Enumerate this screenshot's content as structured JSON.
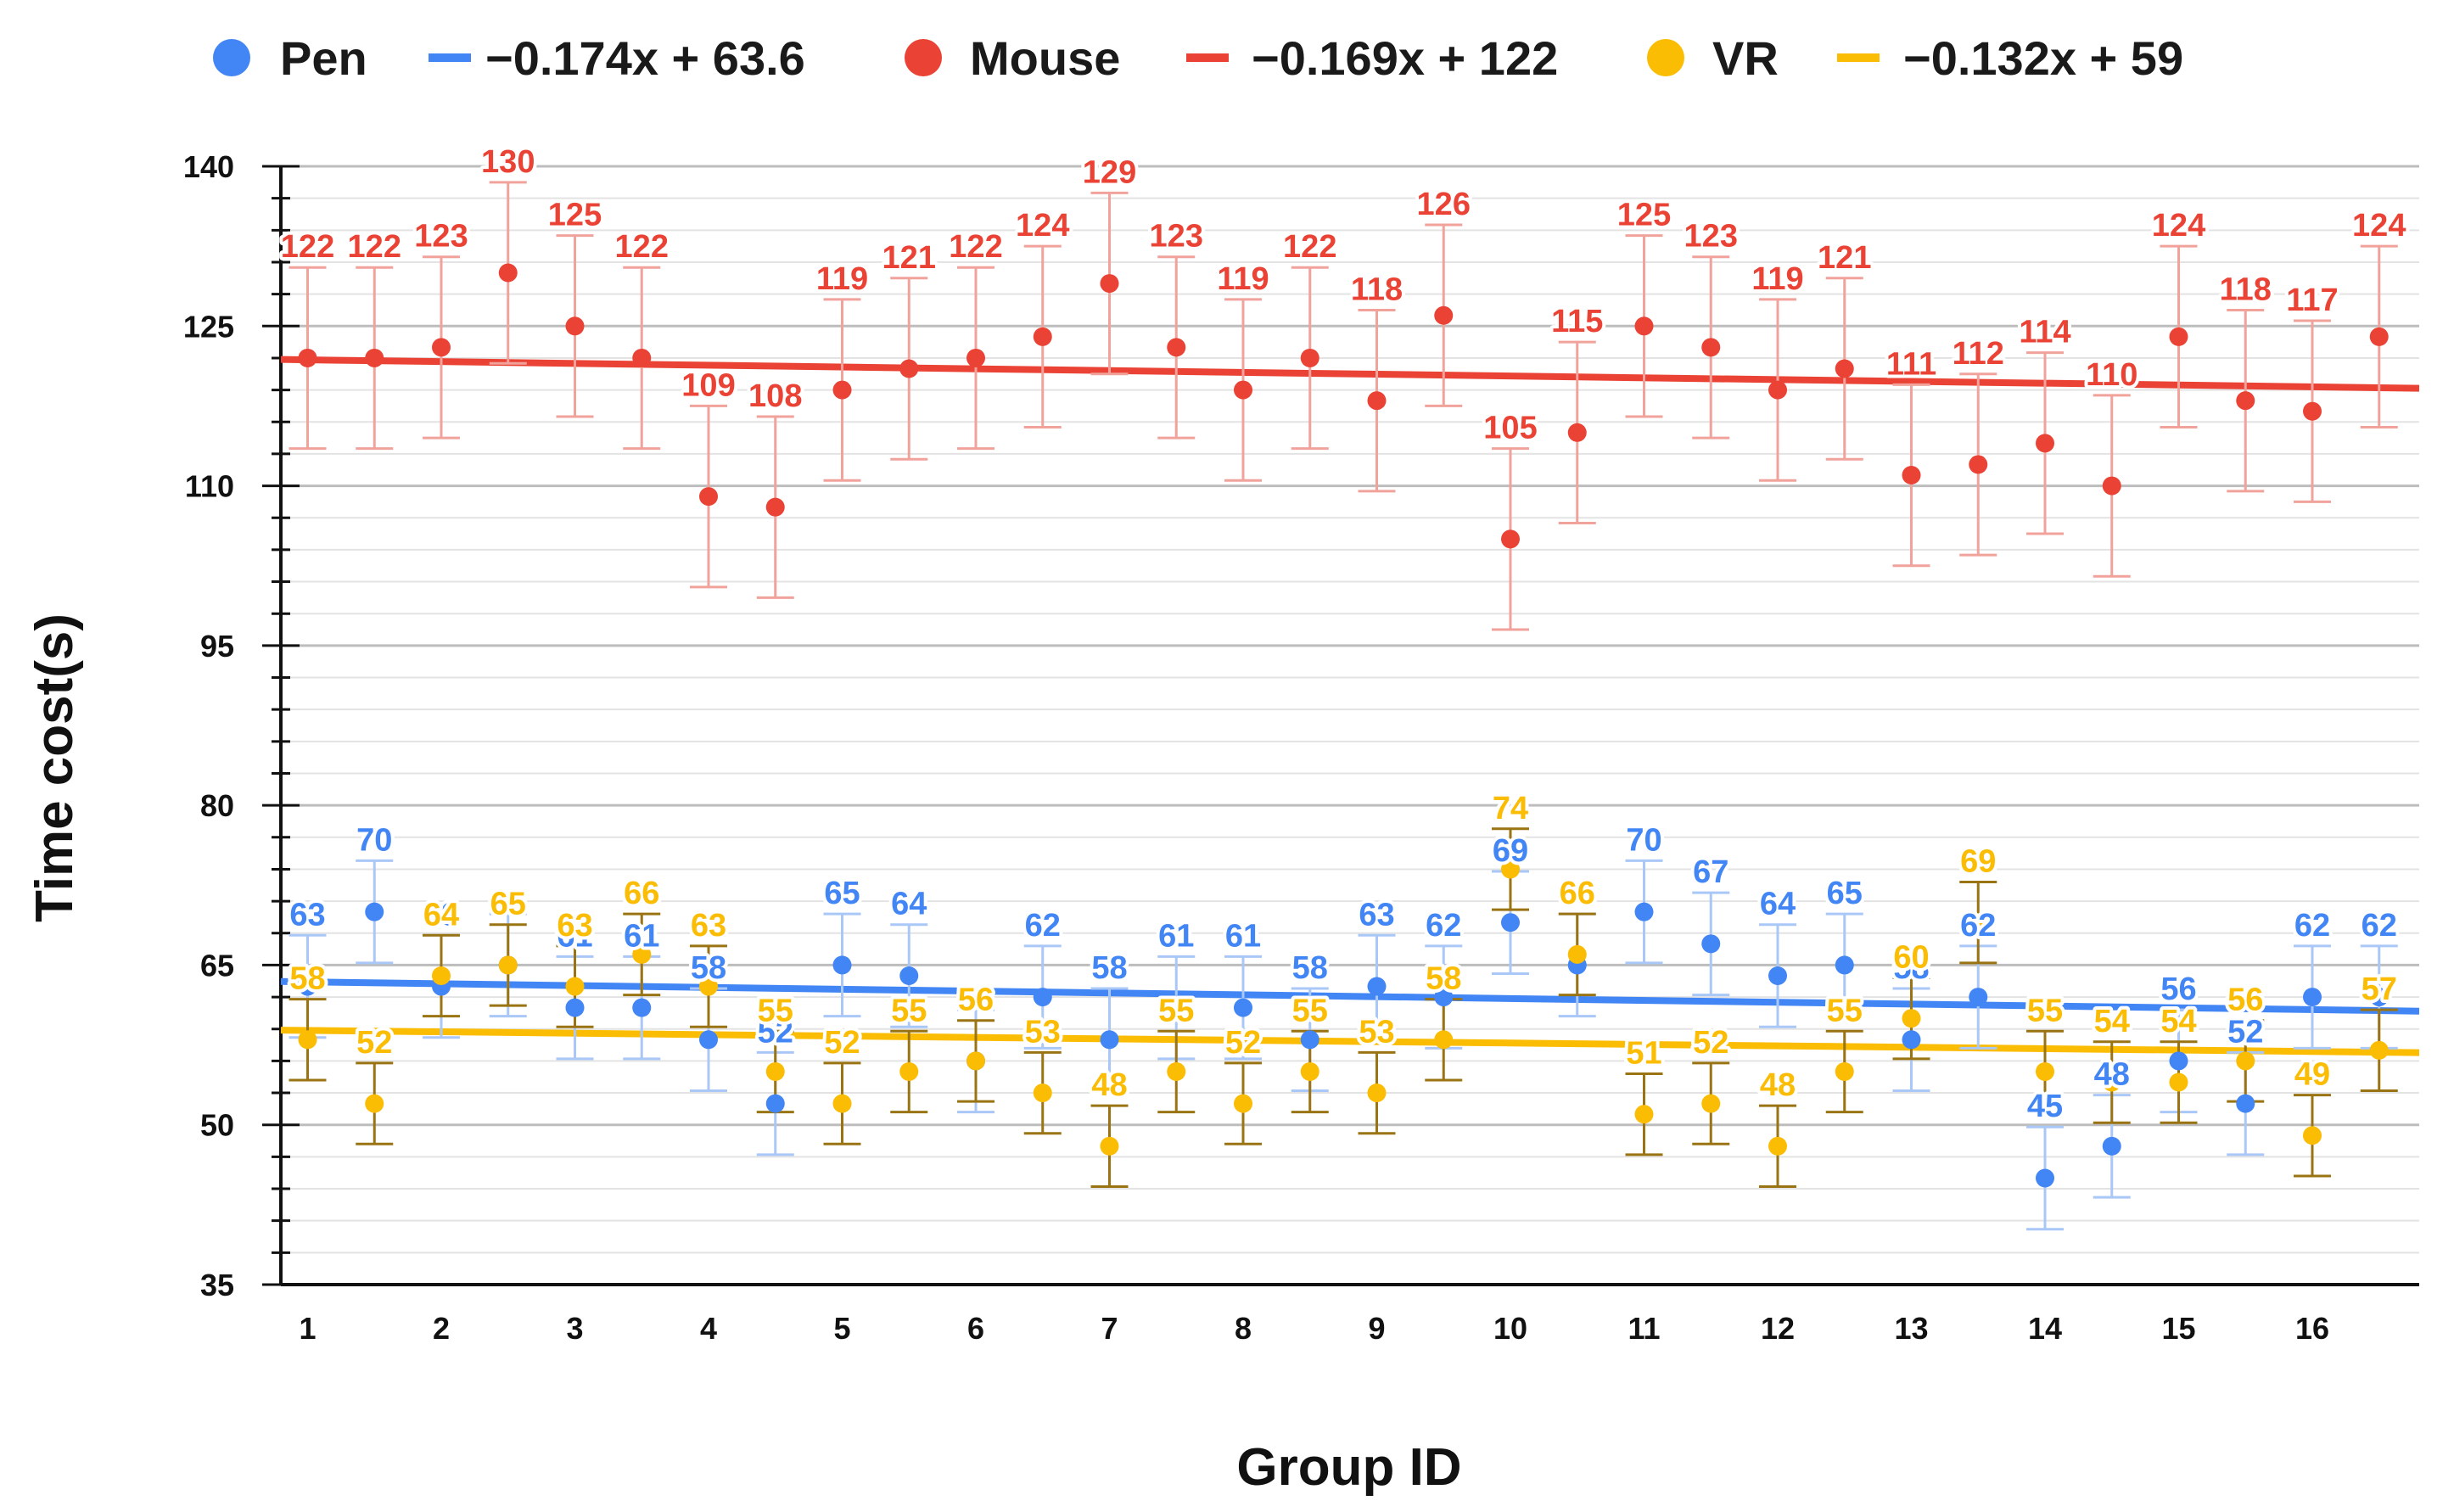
{
  "chart_data": {
    "type": "scatter",
    "title": "",
    "xlabel": "Group ID",
    "ylabel": "Time cost(s)",
    "ylim": [
      35,
      140
    ],
    "yticks": [
      35,
      50,
      65,
      80,
      95,
      110,
      125,
      140
    ],
    "x_categories": [
      "1",
      "2",
      "3",
      "4",
      "5",
      "6",
      "7",
      "8",
      "9",
      "10",
      "11",
      "12",
      "13",
      "14",
      "15",
      "16"
    ],
    "grid": true,
    "legend_position": "top",
    "series": [
      {
        "name": "Pen",
        "color": "#4285f4",
        "error_color": "#a9c7f7",
        "label_color": "#4285f4",
        "x": [
          1,
          1.5,
          2,
          2.5,
          3,
          3.5,
          4,
          4.5,
          5,
          5.5,
          6,
          6.5,
          7,
          7.5,
          8,
          8.5,
          9,
          9.5,
          10,
          10.5,
          11,
          11.5,
          12,
          12.5,
          13,
          13.5,
          14,
          14.5,
          15,
          15.5,
          16,
          16.5
        ],
        "y": [
          63,
          70,
          63,
          65,
          61,
          61,
          58,
          52,
          65,
          64,
          56,
          62,
          58,
          61,
          61,
          58,
          63,
          62,
          69,
          65,
          70,
          67,
          64,
          65,
          58,
          62,
          45,
          48,
          56,
          52,
          62,
          62
        ],
        "labels": [
          "63",
          "70",
          "63",
          "",
          "61",
          "61",
          "58",
          "52",
          "65",
          "64",
          "",
          "62",
          "58",
          "61",
          "61",
          "58",
          "63",
          "62",
          "69",
          "65",
          "70",
          "67",
          "64",
          "65",
          "58",
          "62",
          "45",
          "48",
          "56",
          "52",
          "62",
          "62"
        ],
        "error": 4.8,
        "trendline_label": "−0.174x + 63.6",
        "trend": {
          "intercept": 63.6,
          "slope": -0.174
        }
      },
      {
        "name": "Mouse",
        "color": "#ea4335",
        "error_color": "#f0a29b",
        "label_color": "#ea4335",
        "x": [
          1,
          1.5,
          2,
          2.5,
          3,
          3.5,
          4,
          4.5,
          5,
          5.5,
          6,
          6.5,
          7,
          7.5,
          8,
          8.5,
          9,
          9.5,
          10,
          10.5,
          11,
          11.5,
          12,
          12.5,
          13,
          13.5,
          14,
          14.5,
          15,
          15.5,
          16,
          16.5
        ],
        "y": [
          122,
          122,
          123,
          130,
          125,
          122,
          109,
          108,
          119,
          121,
          122,
          124,
          129,
          123,
          119,
          122,
          118,
          126,
          105,
          115,
          125,
          123,
          119,
          121,
          111,
          112,
          114,
          110,
          124,
          118,
          117,
          124
        ],
        "labels": [
          "122",
          "122",
          "123",
          "130",
          "125",
          "122",
          "109",
          "108",
          "119",
          "121",
          "122",
          "124",
          "129",
          "123",
          "119",
          "122",
          "118",
          "126",
          "105",
          "115",
          "125",
          "123",
          "119",
          "121",
          "111",
          "112",
          "114",
          "110",
          "124",
          "118",
          "117",
          "124"
        ],
        "error": 8.5,
        "trendline_label": "−0.169x + 122",
        "trend": {
          "intercept": 122,
          "slope": -0.169
        }
      },
      {
        "name": "VR",
        "color": "#fbbc04",
        "error_color": "#9a7413",
        "label_color": "#fbbc04",
        "x": [
          1,
          1.5,
          2,
          2.5,
          3,
          3.5,
          4,
          4.5,
          5,
          5.5,
          6,
          6.5,
          7,
          7.5,
          8,
          8.5,
          9,
          9.5,
          10,
          10.5,
          11,
          11.5,
          12,
          12.5,
          13,
          13.5,
          14,
          14.5,
          15,
          15.5,
          16,
          16.5
        ],
        "y": [
          58,
          52,
          64,
          65,
          63,
          66,
          63,
          55,
          52,
          55,
          56,
          53,
          48,
          55,
          52,
          55,
          53,
          58,
          74,
          66,
          51,
          52,
          48,
          55,
          60,
          69,
          55,
          54,
          54,
          56,
          49,
          57
        ],
        "labels": [
          "58",
          "52",
          "64",
          "65",
          "63",
          "66",
          "63",
          "55",
          "52",
          "55",
          "56",
          "53",
          "48",
          "55",
          "52",
          "55",
          "53",
          "58",
          "74",
          "66",
          "51",
          "52",
          "48",
          "55",
          "60",
          "69",
          "55",
          "54",
          "54",
          "56",
          "49",
          "57"
        ],
        "error": 3.8,
        "trendline_label": "−0.132x + 59",
        "trend": {
          "intercept": 59,
          "slope": -0.132
        }
      }
    ]
  }
}
